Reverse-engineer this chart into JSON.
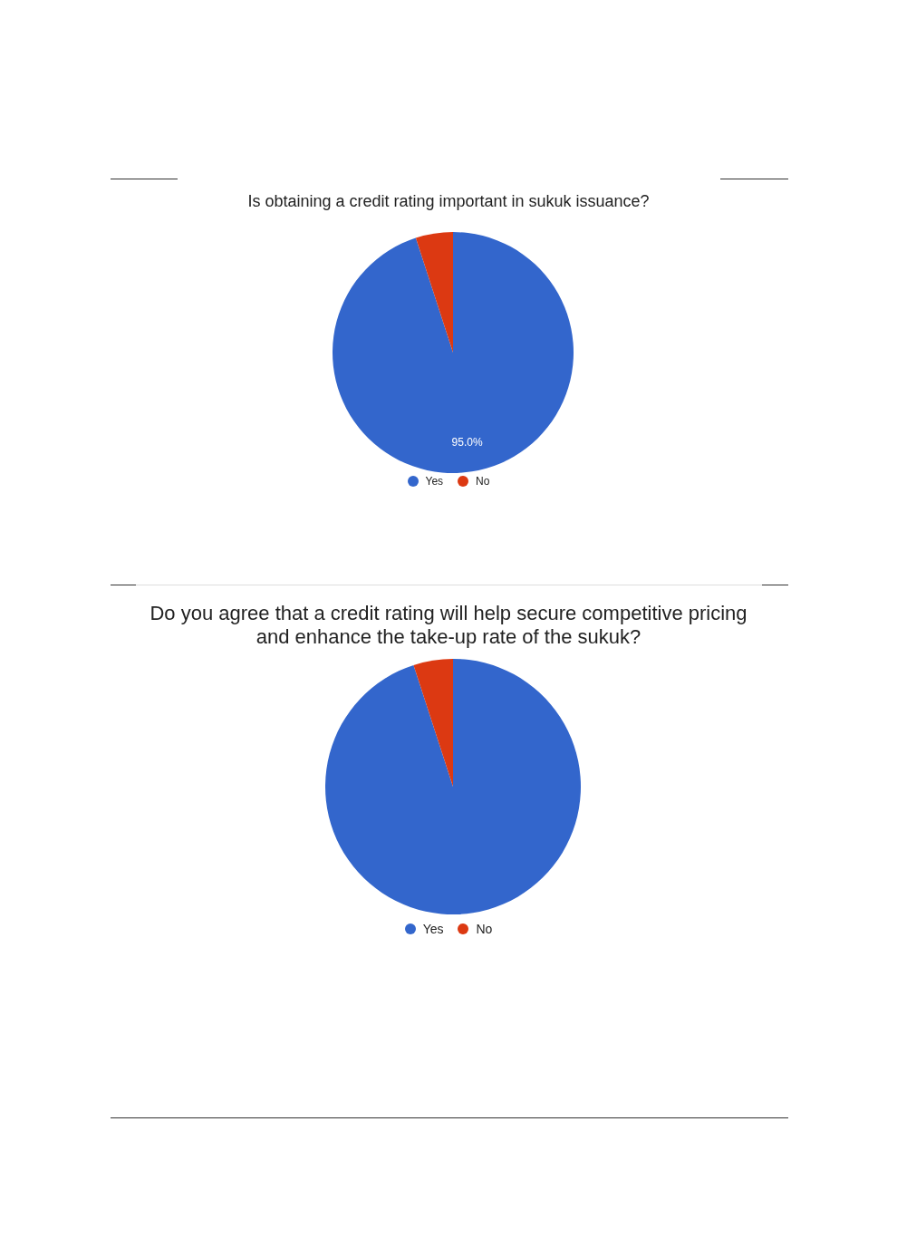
{
  "chart_data": [
    {
      "type": "pie",
      "title": "Is obtaining a credit rating important in sukuk issuance?",
      "categories": [
        "Yes",
        "No"
      ],
      "values": [
        95,
        5
      ],
      "colors": [
        "#3366cc",
        "#dc3912"
      ],
      "value_labels": [
        "95.0%",
        null
      ],
      "legend": "bottom"
    },
    {
      "type": "pie",
      "title": "Do you agree that a credit rating will help secure competitive pricing and enhance the take-up rate of the sukuk?",
      "categories": [
        "Yes",
        "No"
      ],
      "values": [
        95,
        5
      ],
      "colors": [
        "#3366cc",
        "#dc3912"
      ],
      "legend": "bottom"
    }
  ]
}
